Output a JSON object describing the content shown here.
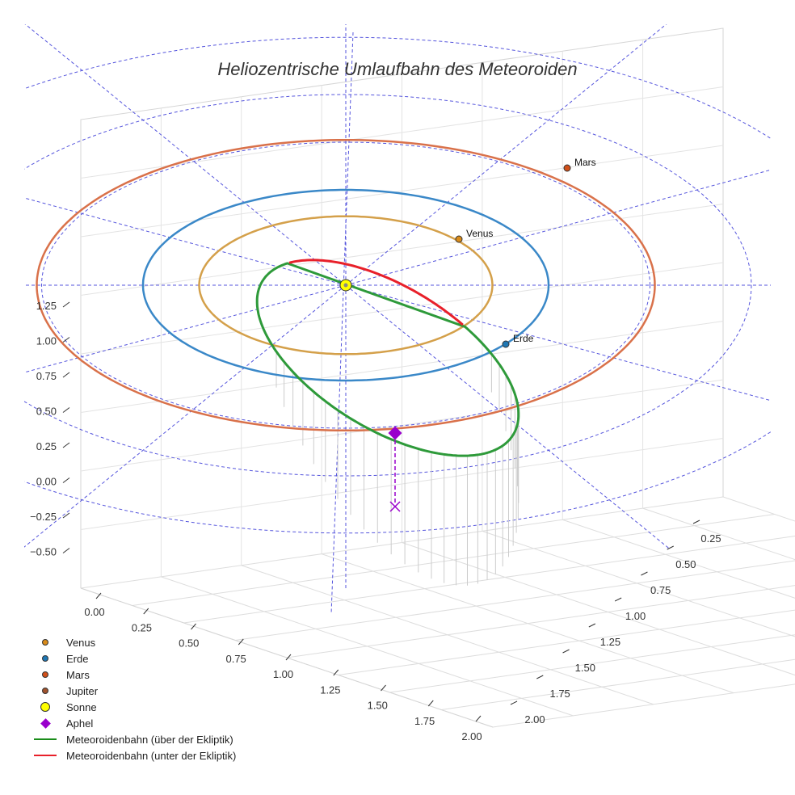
{
  "chart_data": {
    "type": "line3d",
    "title": "Heliozentrische Umlaufbahn des Meteoroiden",
    "axes": {
      "x_ticks": [
        "0.00",
        "0.25",
        "0.50",
        "0.75",
        "1.00",
        "1.25",
        "1.50",
        "1.75",
        "2.00"
      ],
      "y_ticks": [
        "0.25",
        "0.50",
        "0.75",
        "1.00",
        "1.25",
        "1.50",
        "1.75",
        "2.00"
      ],
      "z_ticks": [
        "1.25",
        "1.00",
        "0.75",
        "0.50",
        "0.25",
        "0.00",
        "−0.25",
        "−0.50"
      ]
    },
    "planets": [
      {
        "name": "Venus",
        "radius_au": 0.723,
        "color": "#d4a04a",
        "label": "Venus"
      },
      {
        "name": "Erde",
        "radius_au": 1.0,
        "color": "#3a88c8",
        "label": "Erde"
      },
      {
        "name": "Mars",
        "radius_au": 1.524,
        "color": "#d9714a",
        "label": "Mars"
      }
    ],
    "meteoroid_orbit": {
      "above_color": "#2e9a3a",
      "below_color": "#e8202a",
      "aphel_color": "#9900cc"
    },
    "legend": [
      {
        "label": "Venus",
        "kind": "dot",
        "color": "#d98b1a"
      },
      {
        "label": "Erde",
        "kind": "dot",
        "color": "#1f77b4"
      },
      {
        "label": "Mars",
        "kind": "dot",
        "color": "#d1501a"
      },
      {
        "label": "Jupiter",
        "kind": "dot",
        "color": "#a0522d"
      },
      {
        "label": "Sonne",
        "kind": "sun",
        "color": "#ffff00"
      },
      {
        "label": "Aphel",
        "kind": "diamond",
        "color": "#9900cc"
      },
      {
        "label": "Meteoroidenbahn (über der Ekliptik)",
        "kind": "line",
        "color": "#1a8c1a"
      },
      {
        "label": "Meteoroidenbahn (unter der Ekliptik)",
        "kind": "line",
        "color": "#e8202a"
      }
    ]
  }
}
